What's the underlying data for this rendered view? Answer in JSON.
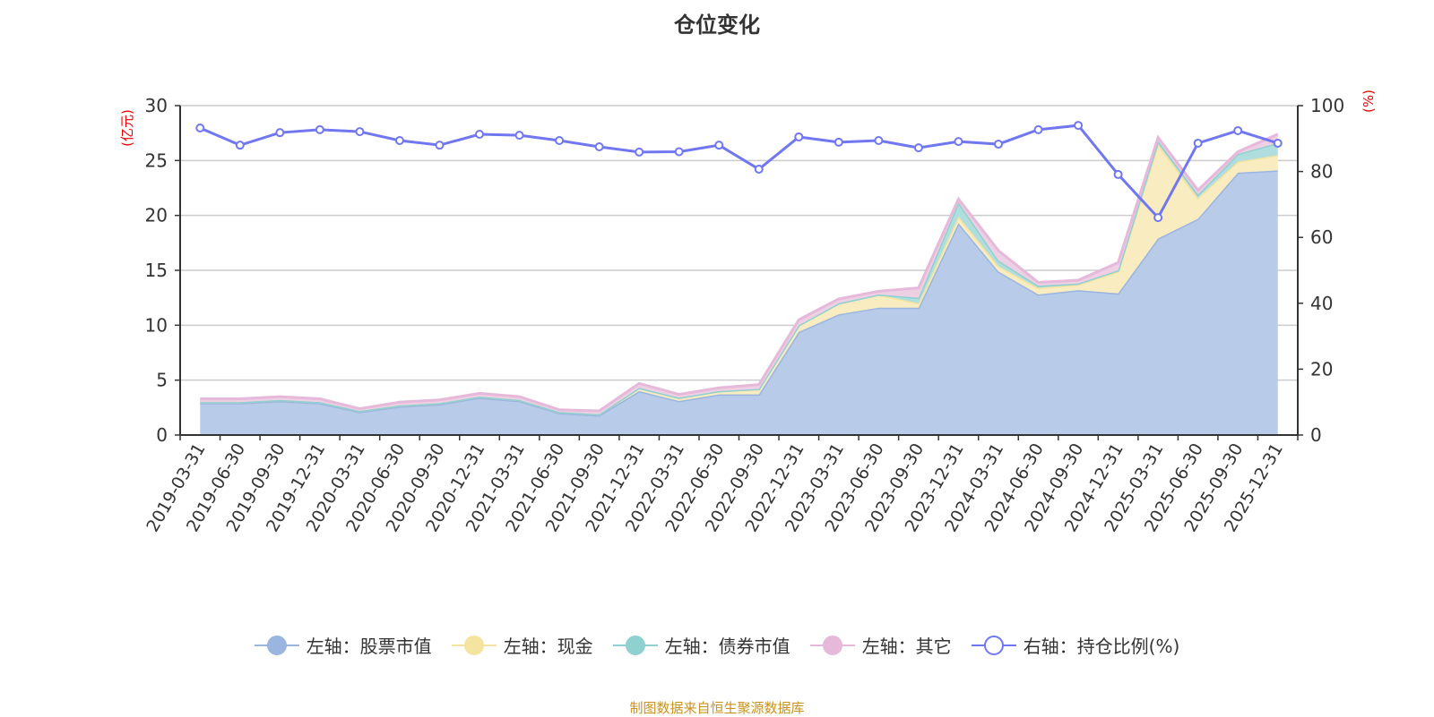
{
  "title": "仓位变化",
  "footer": "制图数据来自恒生聚源数据库",
  "chart_data": {
    "type": "area",
    "title": "仓位变化",
    "categories": [
      "2019-03-31",
      "2019-06-30",
      "2019-09-30",
      "2019-12-31",
      "2020-03-31",
      "2020-06-30",
      "2020-09-30",
      "2020-12-31",
      "2021-03-31",
      "2021-06-30",
      "2021-09-30",
      "2021-12-31",
      "2022-03-31",
      "2022-06-30",
      "2022-09-30",
      "2022-12-31",
      "2023-03-31",
      "2023-06-30",
      "2023-09-30",
      "2023-12-31",
      "2024-03-31",
      "2024-06-30",
      "2024-09-30",
      "2024-12-31",
      "2025-03-31",
      "2025-06-30",
      "2025-09-30",
      "2025-12-31"
    ],
    "left_axis": {
      "label": "(亿元)",
      "range": [
        0,
        30
      ],
      "ticks": [
        0,
        5,
        10,
        15,
        20,
        25,
        30
      ]
    },
    "right_axis": {
      "label": "(%)",
      "range": [
        0,
        100
      ],
      "ticks": [
        0,
        20,
        40,
        60,
        80,
        100
      ]
    },
    "grid": true,
    "legend_position": "bottom",
    "stacked": true,
    "series": [
      {
        "name": "左轴：股票市值",
        "axis": "left",
        "type": "area",
        "color": "#9ab5e0",
        "fill": "#b8cbe8",
        "values": [
          2.9,
          2.9,
          3.1,
          2.9,
          2.1,
          2.6,
          2.8,
          3.4,
          3.1,
          2.0,
          1.8,
          4.0,
          3.1,
          3.7,
          3.7,
          9.4,
          11.0,
          11.6,
          11.6,
          19.3,
          14.9,
          12.8,
          13.2,
          12.9,
          17.9,
          19.7,
          23.9,
          24.1
        ]
      },
      {
        "name": "左轴：现金",
        "axis": "left",
        "type": "area",
        "color": "#f5e3a0",
        "fill": "#f8ecc0",
        "values": [
          0.1,
          0.1,
          0.1,
          0.1,
          0.1,
          0.1,
          0.1,
          0.1,
          0.1,
          0.1,
          0.1,
          0.3,
          0.3,
          0.3,
          0.5,
          0.6,
          1.0,
          1.2,
          0.4,
          0.6,
          0.5,
          0.6,
          0.5,
          2.0,
          8.6,
          1.9,
          1.0,
          1.4
        ]
      },
      {
        "name": "左轴：债券市值",
        "axis": "left",
        "type": "area",
        "color": "#8fd0d0",
        "fill": "#b0dede",
        "values": [
          0,
          0,
          0,
          0,
          0,
          0,
          0,
          0,
          0,
          0,
          0,
          0,
          0,
          0,
          0,
          0,
          0,
          0,
          0.5,
          1.3,
          0.5,
          0.2,
          0.1,
          0.1,
          0.3,
          0.3,
          0.7,
          1.1
        ]
      },
      {
        "name": "左轴：其它",
        "axis": "left",
        "type": "area",
        "color": "#e6b8da",
        "fill": "#edd0e4",
        "values": [
          0.3,
          0.3,
          0.3,
          0.3,
          0.2,
          0.3,
          0.3,
          0.3,
          0.3,
          0.2,
          0.3,
          0.4,
          0.3,
          0.3,
          0.4,
          0.5,
          0.4,
          0.3,
          0.9,
          0.3,
          0.9,
          0.3,
          0.3,
          0.7,
          0.3,
          0.4,
          0.2,
          0.8
        ]
      },
      {
        "name": "右轴：持仓比例(%)",
        "axis": "right",
        "type": "line",
        "color": "#7077f0",
        "values": [
          93.2,
          88.0,
          91.8,
          92.7,
          92.1,
          89.4,
          88.0,
          91.3,
          91.0,
          89.4,
          87.5,
          85.9,
          86.0,
          88.0,
          80.7,
          90.5,
          88.9,
          89.4,
          87.2,
          89.1,
          88.3,
          92.7,
          94.0,
          79.1,
          66.0,
          88.6,
          92.4,
          88.6
        ]
      }
    ]
  }
}
